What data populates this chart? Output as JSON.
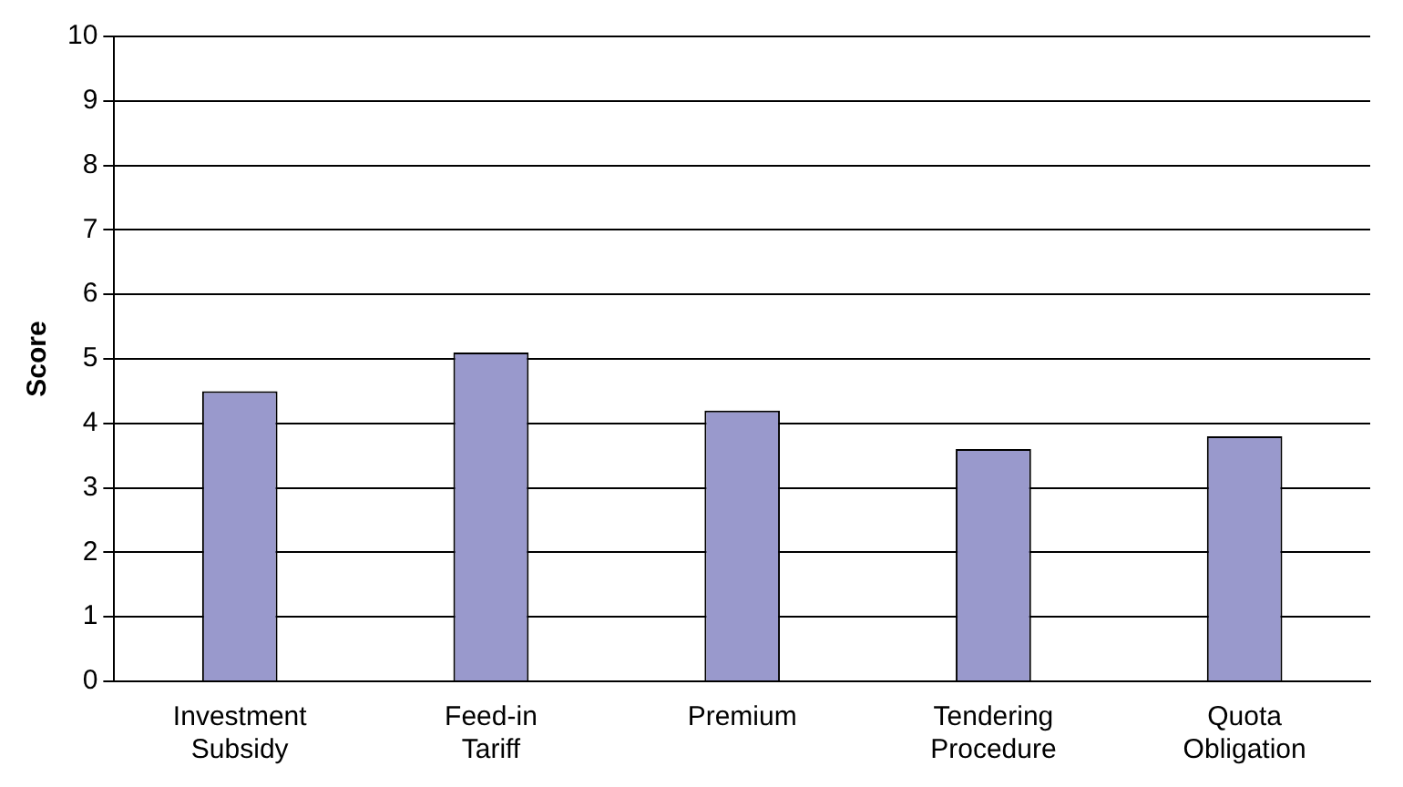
{
  "chart_data": {
    "type": "bar",
    "ylabel": "Score",
    "categories": [
      "Investment Subsidy",
      "Feed-in Tariff",
      "Premium",
      "Tendering Procedure",
      "Quota Obligation"
    ],
    "values": [
      4.5,
      5.1,
      4.2,
      3.6,
      3.8
    ],
    "color": "#9999cc",
    "ylim": [
      0,
      10
    ],
    "yticks": [
      0,
      1,
      2,
      3,
      4,
      5,
      6,
      7,
      8,
      9,
      10
    ],
    "grid": "y"
  }
}
